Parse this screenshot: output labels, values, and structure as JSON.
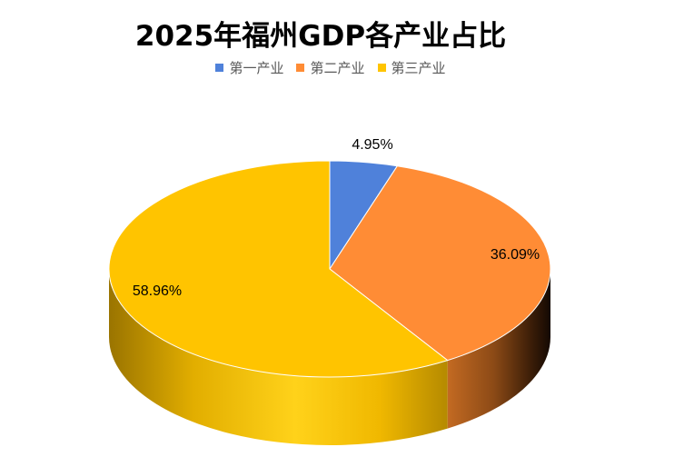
{
  "chart_data": {
    "type": "pie",
    "title": "2025年福州GDP各产业占比",
    "categories": [
      "第一产业",
      "第二产业",
      "第三产业"
    ],
    "values": [
      4.95,
      36.09,
      58.96
    ],
    "labels": [
      "4.95%",
      "36.09%",
      "58.96%"
    ],
    "colors": [
      "#4F81DA",
      "#FF8C35",
      "#FFC400"
    ],
    "legend_position": "top",
    "style": "3d"
  }
}
